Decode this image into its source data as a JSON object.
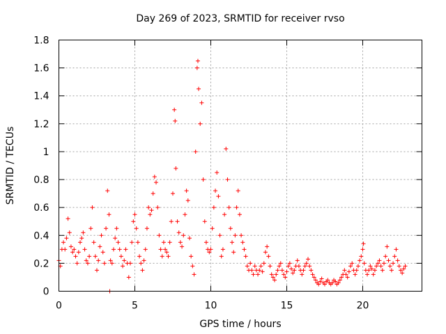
{
  "chart_data": {
    "type": "scatter",
    "title": "Day 269 of 2023, SRMTID for receiver rvso",
    "xlabel": "GPS time / hours",
    "ylabel": "SRMTID / TECUs",
    "xlim": [
      0,
      23.9
    ],
    "ylim": [
      0,
      1.8
    ],
    "grid": true,
    "marker": "+",
    "color": "#ff0000",
    "xticks": [
      0,
      5,
      10,
      15,
      20
    ],
    "xtick_labels": [
      "0",
      "5",
      "10",
      "15",
      "20"
    ],
    "yticks": [
      0,
      0.2,
      0.4,
      0.6,
      0.8,
      1,
      1.2,
      1.4,
      1.6,
      1.8
    ],
    "ytick_labels": [
      "0",
      "0.2",
      "0.4",
      "0.6",
      "0.8",
      "1",
      "1.2",
      "1.4",
      "1.6",
      "1.8"
    ],
    "series": [
      {
        "name": "rvso",
        "points": [
          [
            0.0,
            0.22
          ],
          [
            0.1,
            0.18
          ],
          [
            0.2,
            0.3
          ],
          [
            0.3,
            0.35
          ],
          [
            0.4,
            0.3
          ],
          [
            0.5,
            0.38
          ],
          [
            0.6,
            0.52
          ],
          [
            0.7,
            0.42
          ],
          [
            0.8,
            0.32
          ],
          [
            0.9,
            0.28
          ],
          [
            1.0,
            0.3
          ],
          [
            1.1,
            0.25
          ],
          [
            1.2,
            0.2
          ],
          [
            1.3,
            0.28
          ],
          [
            1.4,
            0.35
          ],
          [
            1.5,
            0.38
          ],
          [
            1.6,
            0.42
          ],
          [
            1.7,
            0.3
          ],
          [
            1.8,
            0.22
          ],
          [
            1.9,
            0.2
          ],
          [
            2.0,
            0.25
          ],
          [
            2.1,
            0.45
          ],
          [
            2.2,
            0.6
          ],
          [
            2.3,
            0.35
          ],
          [
            2.4,
            0.25
          ],
          [
            2.5,
            0.15
          ],
          [
            2.6,
            0.22
          ],
          [
            2.7,
            0.32
          ],
          [
            2.8,
            0.4
          ],
          [
            2.9,
            0.28
          ],
          [
            3.0,
            0.2
          ],
          [
            3.1,
            0.45
          ],
          [
            3.2,
            0.72
          ],
          [
            3.3,
            0.55
          ],
          [
            3.35,
            0.0
          ],
          [
            3.4,
            0.22
          ],
          [
            3.5,
            0.2
          ],
          [
            3.6,
            0.3
          ],
          [
            3.7,
            0.38
          ],
          [
            3.8,
            0.45
          ],
          [
            3.9,
            0.35
          ],
          [
            4.0,
            0.3
          ],
          [
            4.1,
            0.25
          ],
          [
            4.2,
            0.18
          ],
          [
            4.3,
            0.22
          ],
          [
            4.4,
            0.3
          ],
          [
            4.5,
            0.2
          ],
          [
            4.6,
            0.1
          ],
          [
            4.7,
            0.2
          ],
          [
            4.8,
            0.35
          ],
          [
            4.9,
            0.5
          ],
          [
            5.0,
            0.55
          ],
          [
            5.1,
            0.45
          ],
          [
            5.2,
            0.35
          ],
          [
            5.3,
            0.25
          ],
          [
            5.4,
            0.2
          ],
          [
            5.5,
            0.15
          ],
          [
            5.6,
            0.22
          ],
          [
            5.7,
            0.3
          ],
          [
            5.8,
            0.45
          ],
          [
            5.9,
            0.6
          ],
          [
            6.0,
            0.55
          ],
          [
            6.1,
            0.58
          ],
          [
            6.2,
            0.7
          ],
          [
            6.3,
            0.82
          ],
          [
            6.4,
            0.78
          ],
          [
            6.5,
            0.6
          ],
          [
            6.6,
            0.4
          ],
          [
            6.7,
            0.3
          ],
          [
            6.8,
            0.25
          ],
          [
            6.9,
            0.35
          ],
          [
            7.0,
            0.3
          ],
          [
            7.1,
            0.28
          ],
          [
            7.2,
            0.25
          ],
          [
            7.3,
            0.35
          ],
          [
            7.4,
            0.5
          ],
          [
            7.5,
            0.7
          ],
          [
            7.6,
            1.3
          ],
          [
            7.65,
            1.22
          ],
          [
            7.7,
            0.88
          ],
          [
            7.8,
            0.5
          ],
          [
            7.9,
            0.42
          ],
          [
            8.0,
            0.35
          ],
          [
            8.1,
            0.32
          ],
          [
            8.2,
            0.4
          ],
          [
            8.3,
            0.55
          ],
          [
            8.4,
            0.72
          ],
          [
            8.5,
            0.65
          ],
          [
            8.6,
            0.38
          ],
          [
            8.7,
            0.25
          ],
          [
            8.8,
            0.18
          ],
          [
            8.9,
            0.12
          ],
          [
            9.0,
            1.0
          ],
          [
            9.1,
            1.6
          ],
          [
            9.15,
            1.65
          ],
          [
            9.2,
            1.45
          ],
          [
            9.3,
            1.2
          ],
          [
            9.4,
            1.35
          ],
          [
            9.5,
            0.8
          ],
          [
            9.6,
            0.5
          ],
          [
            9.7,
            0.35
          ],
          [
            9.8,
            0.3
          ],
          [
            9.9,
            0.28
          ],
          [
            10.0,
            0.3
          ],
          [
            10.1,
            0.45
          ],
          [
            10.2,
            0.6
          ],
          [
            10.3,
            0.72
          ],
          [
            10.4,
            0.85
          ],
          [
            10.5,
            0.68
          ],
          [
            10.6,
            0.4
          ],
          [
            10.7,
            0.25
          ],
          [
            10.8,
            0.3
          ],
          [
            10.9,
            0.55
          ],
          [
            11.0,
            1.02
          ],
          [
            11.1,
            0.8
          ],
          [
            11.2,
            0.6
          ],
          [
            11.3,
            0.45
          ],
          [
            11.4,
            0.35
          ],
          [
            11.5,
            0.28
          ],
          [
            11.6,
            0.4
          ],
          [
            11.7,
            0.6
          ],
          [
            11.8,
            0.72
          ],
          [
            11.9,
            0.55
          ],
          [
            12.0,
            0.4
          ],
          [
            12.1,
            0.35
          ],
          [
            12.2,
            0.3
          ],
          [
            12.3,
            0.25
          ],
          [
            12.4,
            0.18
          ],
          [
            12.5,
            0.15
          ],
          [
            12.6,
            0.2
          ],
          [
            12.7,
            0.15
          ],
          [
            12.8,
            0.12
          ],
          [
            12.9,
            0.18
          ],
          [
            13.0,
            0.15
          ],
          [
            13.1,
            0.12
          ],
          [
            13.2,
            0.15
          ],
          [
            13.3,
            0.18
          ],
          [
            13.4,
            0.14
          ],
          [
            13.5,
            0.2
          ],
          [
            13.6,
            0.28
          ],
          [
            13.7,
            0.32
          ],
          [
            13.8,
            0.25
          ],
          [
            13.9,
            0.18
          ],
          [
            14.0,
            0.12
          ],
          [
            14.1,
            0.1
          ],
          [
            14.2,
            0.08
          ],
          [
            14.3,
            0.12
          ],
          [
            14.4,
            0.15
          ],
          [
            14.5,
            0.18
          ],
          [
            14.6,
            0.2
          ],
          [
            14.7,
            0.15
          ],
          [
            14.8,
            0.12
          ],
          [
            14.9,
            0.1
          ],
          [
            15.0,
            0.14
          ],
          [
            15.1,
            0.18
          ],
          [
            15.2,
            0.2
          ],
          [
            15.3,
            0.16
          ],
          [
            15.4,
            0.13
          ],
          [
            15.5,
            0.15
          ],
          [
            15.6,
            0.18
          ],
          [
            15.7,
            0.22
          ],
          [
            15.8,
            0.18
          ],
          [
            15.9,
            0.15
          ],
          [
            16.0,
            0.12
          ],
          [
            16.1,
            0.15
          ],
          [
            16.2,
            0.18
          ],
          [
            16.3,
            0.2
          ],
          [
            16.4,
            0.23
          ],
          [
            16.5,
            0.18
          ],
          [
            16.6,
            0.15
          ],
          [
            16.7,
            0.12
          ],
          [
            16.8,
            0.1
          ],
          [
            16.9,
            0.08
          ],
          [
            17.0,
            0.06
          ],
          [
            17.1,
            0.05
          ],
          [
            17.2,
            0.07
          ],
          [
            17.3,
            0.09
          ],
          [
            17.4,
            0.06
          ],
          [
            17.5,
            0.05
          ],
          [
            17.6,
            0.07
          ],
          [
            17.7,
            0.08
          ],
          [
            17.8,
            0.06
          ],
          [
            17.9,
            0.05
          ],
          [
            18.0,
            0.06
          ],
          [
            18.1,
            0.08
          ],
          [
            18.2,
            0.07
          ],
          [
            18.3,
            0.05
          ],
          [
            18.4,
            0.06
          ],
          [
            18.5,
            0.08
          ],
          [
            18.6,
            0.1
          ],
          [
            18.7,
            0.12
          ],
          [
            18.8,
            0.15
          ],
          [
            18.9,
            0.12
          ],
          [
            19.0,
            0.1
          ],
          [
            19.1,
            0.14
          ],
          [
            19.2,
            0.18
          ],
          [
            19.3,
            0.2
          ],
          [
            19.4,
            0.15
          ],
          [
            19.5,
            0.12
          ],
          [
            19.6,
            0.15
          ],
          [
            19.7,
            0.18
          ],
          [
            19.8,
            0.22
          ],
          [
            19.9,
            0.25
          ],
          [
            20.0,
            0.3
          ],
          [
            20.05,
            0.34
          ],
          [
            20.1,
            0.2
          ],
          [
            20.2,
            0.15
          ],
          [
            20.3,
            0.12
          ],
          [
            20.4,
            0.15
          ],
          [
            20.5,
            0.18
          ],
          [
            20.6,
            0.16
          ],
          [
            20.7,
            0.12
          ],
          [
            20.8,
            0.15
          ],
          [
            20.9,
            0.18
          ],
          [
            21.0,
            0.2
          ],
          [
            21.1,
            0.22
          ],
          [
            21.2,
            0.18
          ],
          [
            21.3,
            0.15
          ],
          [
            21.4,
            0.2
          ],
          [
            21.5,
            0.25
          ],
          [
            21.6,
            0.32
          ],
          [
            21.7,
            0.22
          ],
          [
            21.8,
            0.18
          ],
          [
            21.9,
            0.15
          ],
          [
            22.0,
            0.2
          ],
          [
            22.1,
            0.25
          ],
          [
            22.2,
            0.3
          ],
          [
            22.3,
            0.22
          ],
          [
            22.4,
            0.18
          ],
          [
            22.5,
            0.15
          ],
          [
            22.6,
            0.13
          ],
          [
            22.7,
            0.16
          ],
          [
            22.8,
            0.18
          ]
        ]
      }
    ]
  }
}
